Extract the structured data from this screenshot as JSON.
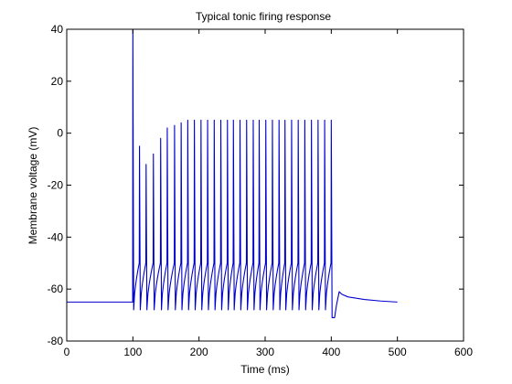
{
  "chart_data": {
    "type": "line",
    "title": "Typical tonic firing response",
    "xlabel": "Time (ms)",
    "ylabel": "Membrane voltage (mV)",
    "xlim": [
      0,
      600
    ],
    "ylim": [
      -80,
      40
    ],
    "xticks": [
      0,
      100,
      200,
      300,
      400,
      500,
      600
    ],
    "yticks": [
      -80,
      -60,
      -40,
      -20,
      0,
      20,
      40
    ],
    "grid": false,
    "line_color": "#0000cc",
    "series": [
      {
        "resting_mV": -65,
        "baseline_start_ms": 0,
        "end_ms": 500,
        "spike_times_ms": [
          100,
          110,
          120,
          131,
          142,
          152,
          163,
          173,
          183,
          193,
          203,
          213,
          223,
          233,
          243,
          252,
          262,
          272,
          282,
          291,
          301,
          311,
          321,
          330,
          340,
          350,
          360,
          370,
          380,
          390,
          400
        ],
        "spike_peaks_mV": [
          40,
          -5,
          -12,
          -8,
          -2,
          2,
          3,
          4,
          5,
          5,
          5,
          5,
          5,
          5,
          5,
          5,
          5,
          5,
          5,
          5,
          5,
          5,
          5,
          5,
          5,
          5,
          5,
          5,
          5,
          5,
          5
        ],
        "trough_mV": [
          -68,
          -68,
          -68,
          -68,
          -68,
          -68,
          -68,
          -68,
          -68,
          -68,
          -68,
          -68,
          -68,
          -68,
          -68,
          -68,
          -68,
          -68,
          -68,
          -68,
          -68,
          -68,
          -68,
          -68,
          -68,
          -68,
          -68,
          -68,
          -68,
          -68,
          -71
        ],
        "tail": [
          [
            405,
            -71
          ],
          [
            408,
            -66
          ],
          [
            412,
            -61
          ],
          [
            416,
            -62
          ],
          [
            425,
            -63
          ],
          [
            450,
            -64
          ],
          [
            475,
            -64.6
          ],
          [
            500,
            -65
          ]
        ]
      }
    ]
  }
}
